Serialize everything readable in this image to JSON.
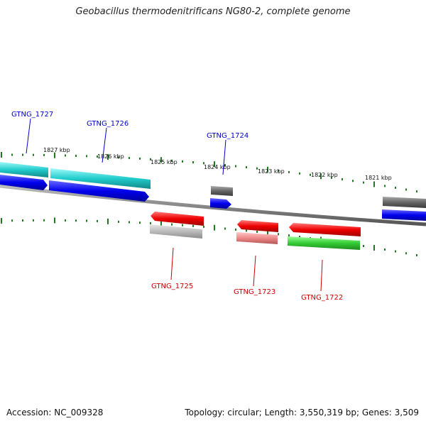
{
  "title": "Geobacillus thermodenitrificans NG80-2, complete genome",
  "footer": {
    "accession": "Accession: NC_009328",
    "summary": "Topology: circular; Length: 3,550,319 bp; Genes: 3,509"
  },
  "positions": [
    "1827 kbp",
    "1826 kbp",
    "1825 kbp",
    "1824 kbp",
    "1823 kbp",
    "1822 kbp",
    "1821 kbp"
  ],
  "forward_genes": [
    "GTNG_1727",
    "GTNG_1726",
    "GTNG_1724"
  ],
  "reverse_genes": [
    "GTNG_1725",
    "GTNG_1723",
    "GTNG_1722"
  ],
  "colors": {
    "forward_label": "#0000cc",
    "reverse_label": "#cc0000",
    "cds_forward": "#0000ee",
    "cds_reverse": "#ee0000",
    "rna_forward": "#00cccc",
    "grey_feature": "#666666",
    "green_feature": "#33cc33",
    "pink_feature": "#ee8888",
    "light_grey_feature": "#bbbbbb",
    "backbone": "#888888",
    "ticks": "#227722"
  }
}
